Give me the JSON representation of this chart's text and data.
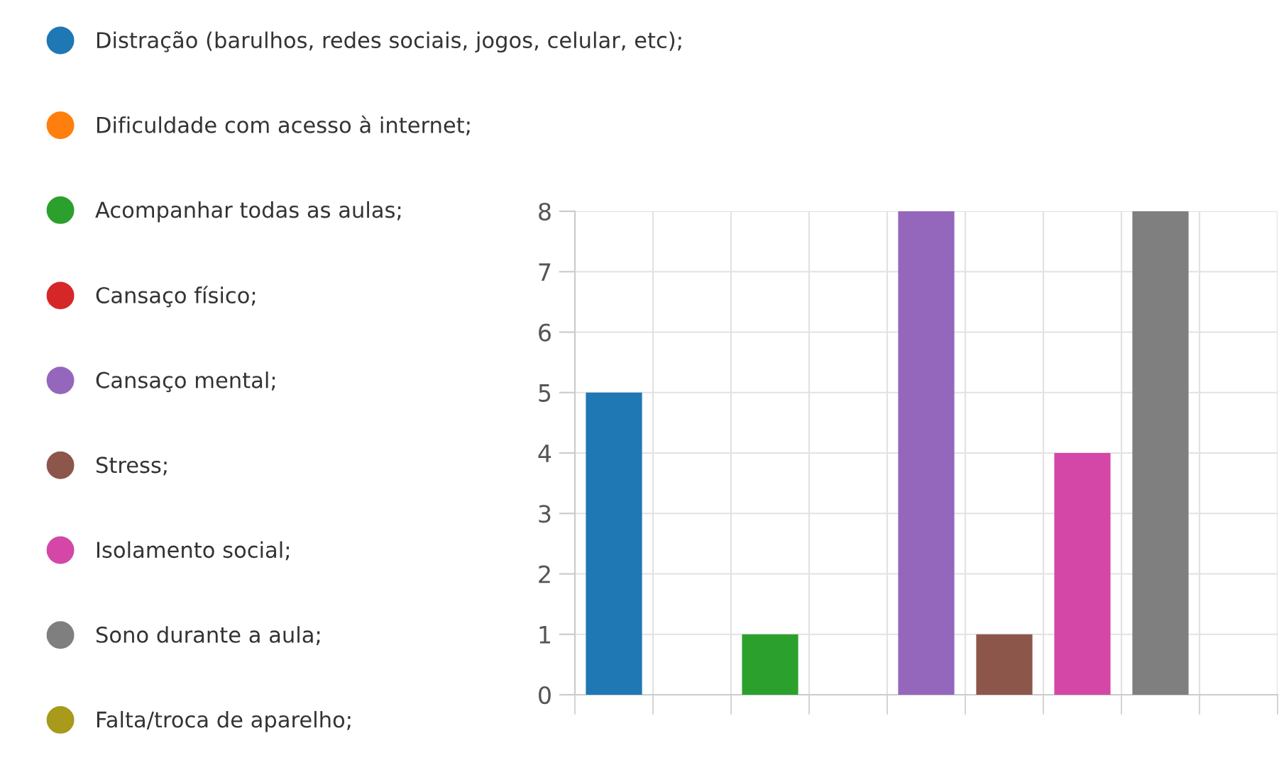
{
  "chart_data": {
    "type": "bar",
    "categories": [
      null,
      null,
      null,
      null,
      null,
      null,
      null,
      null,
      null
    ],
    "series": [
      {
        "name": "Distração (barulhos, redes sociais, jogos, celular, etc);",
        "color": "#1f77b4",
        "values": [
          5,
          null,
          null,
          null,
          null,
          null,
          null,
          null,
          null
        ]
      },
      {
        "name": "Dificuldade com acesso à internet;",
        "color": "#ff7f0e",
        "values": [
          null,
          0,
          null,
          null,
          null,
          null,
          null,
          null,
          null
        ]
      },
      {
        "name": "Acompanhar todas as aulas;",
        "color": "#2ca02c",
        "values": [
          null,
          null,
          1,
          null,
          null,
          null,
          null,
          null,
          null
        ]
      },
      {
        "name": "Cansaço físico;",
        "color": "#d62728",
        "values": [
          null,
          null,
          null,
          0,
          null,
          null,
          null,
          null,
          null
        ]
      },
      {
        "name": "Cansaço mental;",
        "color": "#9467bd",
        "values": [
          null,
          null,
          null,
          null,
          8,
          null,
          null,
          null,
          null
        ]
      },
      {
        "name": "Stress;",
        "color": "#8c564b",
        "values": [
          null,
          null,
          null,
          null,
          null,
          1,
          null,
          null,
          null
        ]
      },
      {
        "name": "Isolamento social;",
        "color": "#d447a7",
        "values": [
          null,
          null,
          null,
          null,
          null,
          null,
          4,
          null,
          null
        ]
      },
      {
        "name": "Sono durante a aula;",
        "color": "#7f7f7f",
        "values": [
          null,
          null,
          null,
          null,
          null,
          null,
          null,
          8,
          null
        ]
      },
      {
        "name": "Falta/troca de aparelho;",
        "color": "#a89a1a",
        "values": [
          null,
          null,
          null,
          null,
          null,
          null,
          null,
          null,
          0
        ]
      }
    ],
    "ylim": [
      0,
      8
    ],
    "yticks": [
      0,
      1,
      2,
      3,
      4,
      5,
      6,
      7,
      8
    ],
    "grid": true,
    "legend": "left",
    "marker": "circle"
  }
}
